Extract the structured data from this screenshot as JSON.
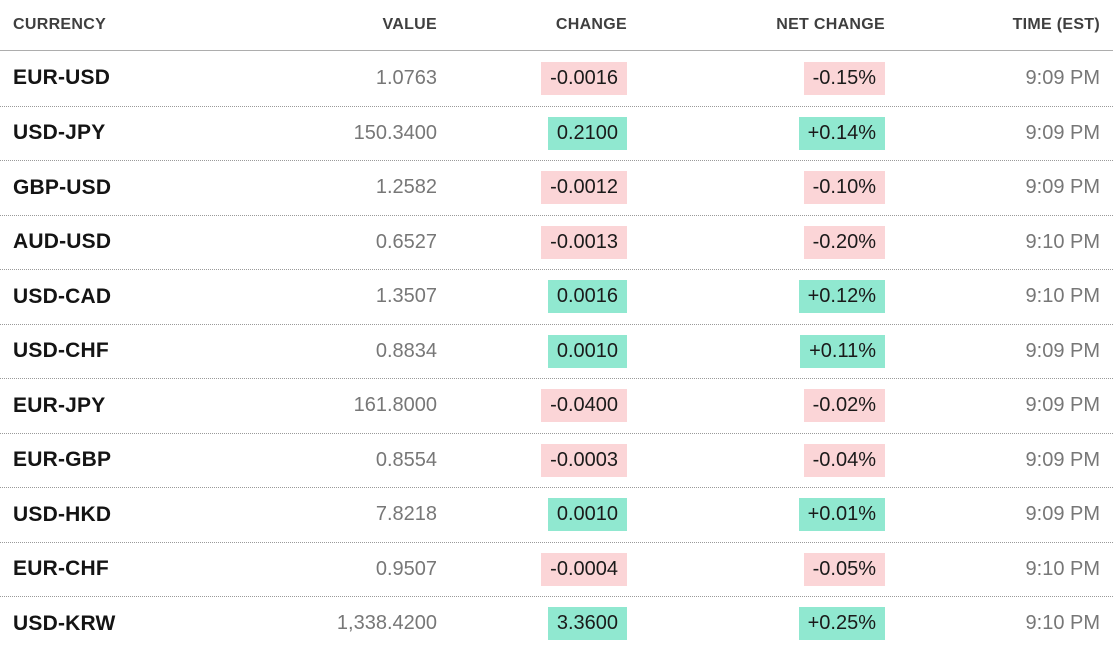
{
  "chart_data": {
    "type": "table",
    "title": "Currency exchange rates table",
    "columns": [
      "CURRENCY",
      "VALUE",
      "CHANGE",
      "NET CHANGE",
      "TIME (EST)"
    ],
    "rows": [
      {
        "currency": "EUR-USD",
        "value": "1.0763",
        "change": "-0.0016",
        "net_change": "-0.15%",
        "time": "9:09 PM",
        "direction": "negative"
      },
      {
        "currency": "USD-JPY",
        "value": "150.3400",
        "change": "0.2100",
        "net_change": "+0.14%",
        "time": "9:09 PM",
        "direction": "positive"
      },
      {
        "currency": "GBP-USD",
        "value": "1.2582",
        "change": "-0.0012",
        "net_change": "-0.10%",
        "time": "9:09 PM",
        "direction": "negative"
      },
      {
        "currency": "AUD-USD",
        "value": "0.6527",
        "change": "-0.0013",
        "net_change": "-0.20%",
        "time": "9:10 PM",
        "direction": "negative"
      },
      {
        "currency": "USD-CAD",
        "value": "1.3507",
        "change": "0.0016",
        "net_change": "+0.12%",
        "time": "9:10 PM",
        "direction": "positive"
      },
      {
        "currency": "USD-CHF",
        "value": "0.8834",
        "change": "0.0010",
        "net_change": "+0.11%",
        "time": "9:09 PM",
        "direction": "positive"
      },
      {
        "currency": "EUR-JPY",
        "value": "161.8000",
        "change": "-0.0400",
        "net_change": "-0.02%",
        "time": "9:09 PM",
        "direction": "negative"
      },
      {
        "currency": "EUR-GBP",
        "value": "0.8554",
        "change": "-0.0003",
        "net_change": "-0.04%",
        "time": "9:09 PM",
        "direction": "negative"
      },
      {
        "currency": "USD-HKD",
        "value": "7.8218",
        "change": "0.0010",
        "net_change": "+0.01%",
        "time": "9:09 PM",
        "direction": "positive"
      },
      {
        "currency": "EUR-CHF",
        "value": "0.9507",
        "change": "-0.0004",
        "net_change": "-0.05%",
        "time": "9:10 PM",
        "direction": "negative"
      },
      {
        "currency": "USD-KRW",
        "value": "1,338.4200",
        "change": "3.3600",
        "net_change": "+0.25%",
        "time": "9:10 PM",
        "direction": "positive"
      }
    ],
    "layout_hints": {
      "numeric_columns_alignment": "right",
      "row_separator": "dotted",
      "header_separator": "solid"
    }
  },
  "colors": {
    "positive_bg": "#90e8d0",
    "negative_bg": "#fbd5d7",
    "header_text": "#3f3f3f",
    "currency_text": "#141414",
    "value_text": "#777777",
    "chip_text": "#1a1a1a",
    "rule_solid": "#adadad",
    "rule_dotted": "#9a9a9a"
  }
}
